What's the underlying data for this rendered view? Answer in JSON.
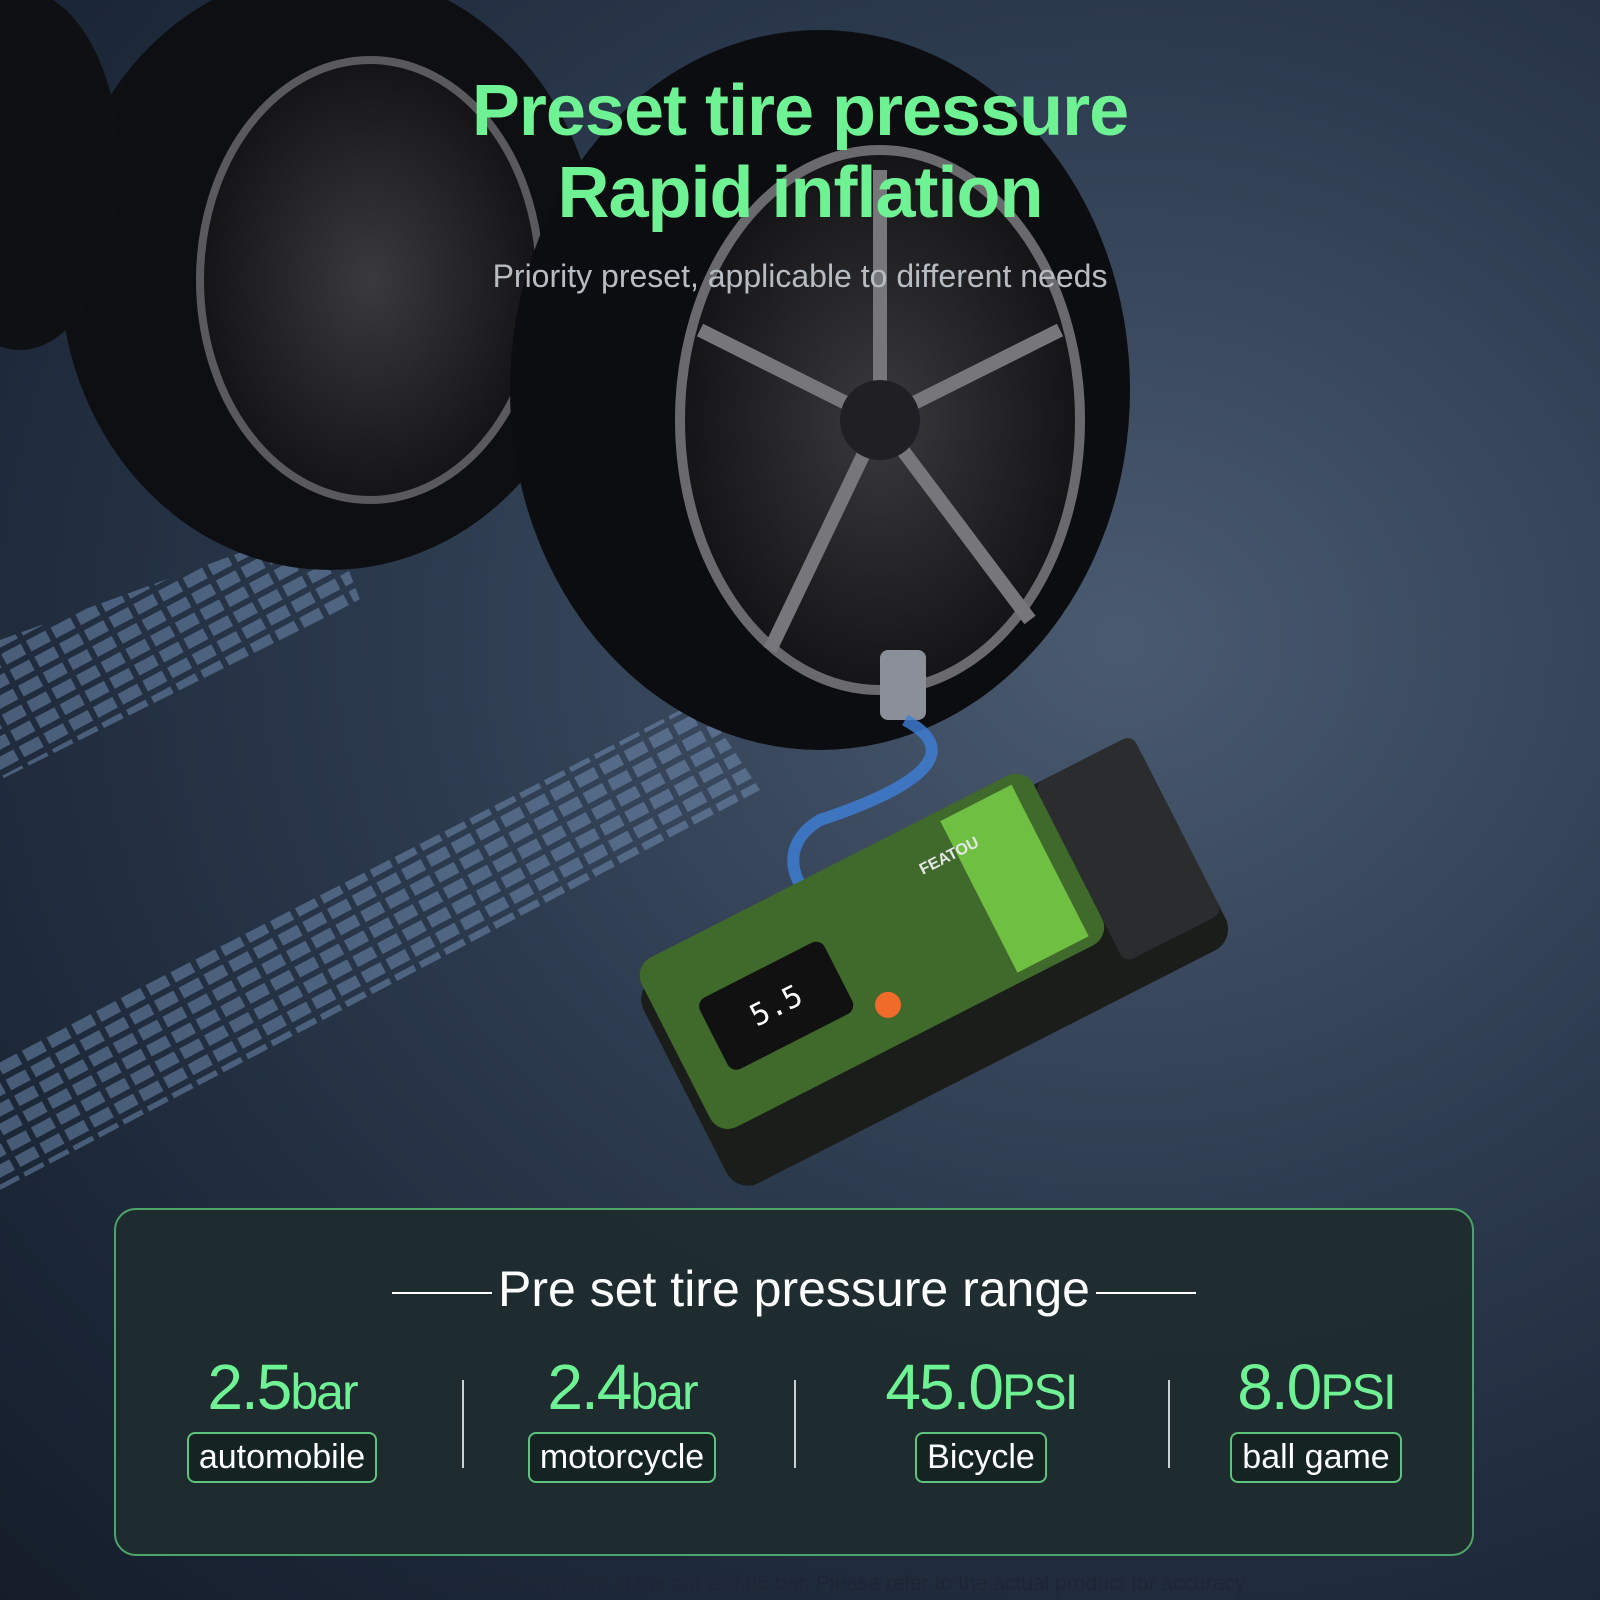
{
  "headline": {
    "line1": "Preset tire pressure",
    "line2": "Rapid inflation"
  },
  "subline": "Priority preset, applicable to different needs",
  "product": {
    "brand": "FEATOU",
    "display_reading": "5.5"
  },
  "panel": {
    "title": "Pre set tire pressure range",
    "items": [
      {
        "value": "2.5",
        "unit": "bar",
        "label": "automobile"
      },
      {
        "value": "2.4",
        "unit": "bar",
        "label": "motorcycle"
      },
      {
        "value": "45.0",
        "unit": "PSI",
        "label": "Bicycle"
      },
      {
        "value": "8.0",
        "unit": "PSI",
        "label": "ball game"
      }
    ]
  },
  "footnote": "*The accurate tire pressure of the car is 0.05 bar. Please refer to the actual product for accuracy",
  "colors": {
    "accent": "#6ff294",
    "panel_border": "#4da468",
    "device_green": "#3f6a2c",
    "power_button": "#f06a2a"
  }
}
